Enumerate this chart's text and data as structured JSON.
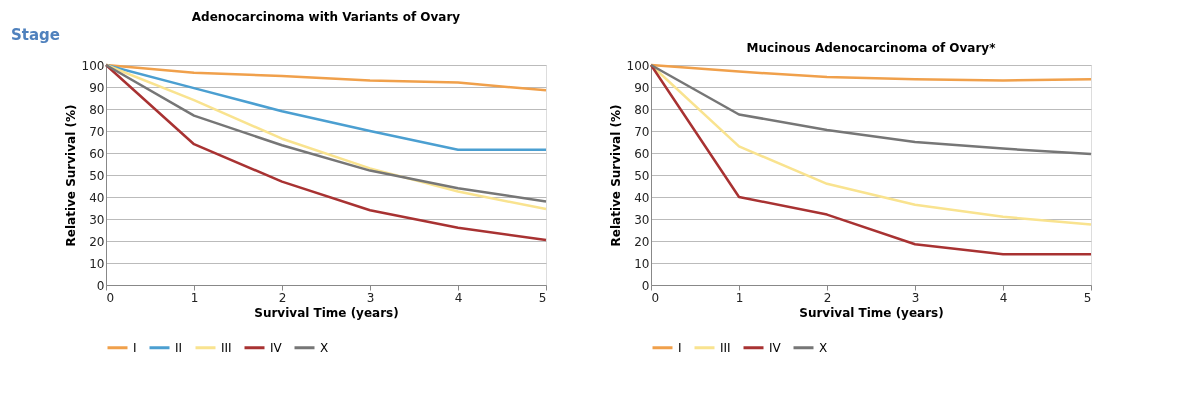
{
  "chart_data": [
    {
      "type": "line",
      "title": "Adenocarcinoma with Variants of Ovary",
      "xlabel": "Survival Time (years)",
      "ylabel": "Relative Survival (%)",
      "annotations": [
        "Stage"
      ],
      "x": [
        0,
        1,
        2,
        3,
        4,
        5
      ],
      "xlim": [
        0,
        5
      ],
      "xticks": [
        0,
        1,
        2,
        3,
        4,
        5
      ],
      "ylim": [
        0,
        100
      ],
      "yticks": [
        0,
        10,
        20,
        30,
        40,
        50,
        60,
        70,
        80,
        90,
        100
      ],
      "grid": "y",
      "legend": "bottom",
      "marker": "none",
      "line_style": "solid",
      "series": [
        {
          "name": "I",
          "color": "#f0a04b",
          "values": [
            100,
            96.5,
            95,
            93,
            92,
            88.5
          ]
        },
        {
          "name": "II",
          "color": "#4b9fd1",
          "values": [
            100,
            89.5,
            79,
            70,
            61.5,
            61.5
          ]
        },
        {
          "name": "III",
          "color": "#f9e38f",
          "values": [
            100,
            84,
            66.5,
            53,
            42.5,
            34.5
          ]
        },
        {
          "name": "IV",
          "color": "#a83232",
          "values": [
            100,
            64,
            47,
            34,
            26,
            20.5
          ]
        },
        {
          "name": "X",
          "color": "#767676",
          "values": [
            100,
            77,
            63.5,
            52,
            44,
            38
          ]
        }
      ]
    },
    {
      "type": "line",
      "title": "Mucinous Adenocarcinoma of Ovary*",
      "xlabel": "Survival Time (years)",
      "ylabel": "Relative Survival (%)",
      "x": [
        0,
        1,
        2,
        3,
        4,
        5
      ],
      "xlim": [
        0,
        5
      ],
      "xticks": [
        0,
        1,
        2,
        3,
        4,
        5
      ],
      "ylim": [
        0,
        100
      ],
      "yticks": [
        0,
        10,
        20,
        30,
        40,
        50,
        60,
        70,
        80,
        90,
        100
      ],
      "grid": "y",
      "legend": "bottom",
      "marker": "none",
      "line_style": "solid",
      "series": [
        {
          "name": "I",
          "color": "#f0a04b",
          "values": [
            100,
            97,
            94.5,
            93.5,
            93,
            93.5
          ]
        },
        {
          "name": "III",
          "color": "#f9e38f",
          "values": [
            100,
            63,
            46,
            36.5,
            31,
            27.5
          ]
        },
        {
          "name": "IV",
          "color": "#a83232",
          "values": [
            100,
            40,
            32,
            18.5,
            14,
            14
          ]
        },
        {
          "name": "X",
          "color": "#767676",
          "values": [
            100,
            77.5,
            70.5,
            65,
            62,
            59.5
          ]
        }
      ]
    }
  ]
}
